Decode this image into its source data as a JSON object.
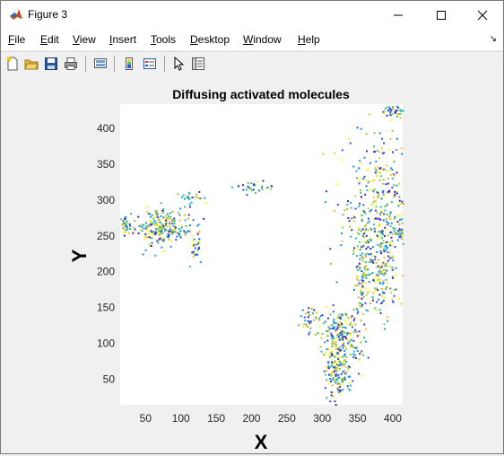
{
  "window": {
    "title": "Figure 3"
  },
  "menu": {
    "items": [
      {
        "pre": "",
        "u": "F",
        "post": "ile"
      },
      {
        "pre": "",
        "u": "E",
        "post": "dit"
      },
      {
        "pre": "",
        "u": "V",
        "post": "iew"
      },
      {
        "pre": "",
        "u": "I",
        "post": "nsert"
      },
      {
        "pre": "",
        "u": "T",
        "post": "ools"
      },
      {
        "pre": "",
        "u": "D",
        "post": "esktop"
      },
      {
        "pre": "",
        "u": "W",
        "post": "indow"
      },
      {
        "pre": "",
        "u": "H",
        "post": "elp"
      }
    ]
  },
  "toolbar": {
    "icons": [
      "new-figure-icon",
      "open-file-icon",
      "save-icon",
      "print-icon",
      "link-plot-icon",
      "colorbar-icon",
      "legend-icon",
      "pointer-icon",
      "property-inspector-icon"
    ]
  },
  "colors": {
    "series": [
      "#3e26a8",
      "#2f4fe8",
      "#1d8ee4",
      "#19b5c8",
      "#4ac26e",
      "#a8bd3a",
      "#f4c02e",
      "#f9fb0e"
    ]
  },
  "chart_data": {
    "type": "scatter",
    "title": "Diffusing activated molecules",
    "xlabel": "X",
    "ylabel": "Y",
    "xlim": [
      14,
      414
    ],
    "ylim": [
      14,
      434
    ],
    "xticks": [
      50,
      100,
      150,
      200,
      250,
      300,
      350,
      400
    ],
    "yticks": [
      50,
      100,
      150,
      200,
      250,
      300,
      350,
      400
    ],
    "grid": false,
    "clusters": [
      {
        "cx": 383,
        "cy": 285,
        "rx": 55,
        "ry": 115,
        "n": 400
      },
      {
        "cx": 402,
        "cy": 425,
        "rx": 18,
        "ry": 10,
        "n": 45
      },
      {
        "cx": 380,
        "cy": 195,
        "rx": 22,
        "ry": 60,
        "n": 120
      },
      {
        "cx": 355,
        "cy": 195,
        "rx": 10,
        "ry": 55,
        "n": 80
      },
      {
        "cx": 325,
        "cy": 105,
        "rx": 30,
        "ry": 45,
        "n": 240
      },
      {
        "cx": 320,
        "cy": 55,
        "rx": 14,
        "ry": 35,
        "n": 110
      },
      {
        "cx": 280,
        "cy": 135,
        "rx": 14,
        "ry": 15,
        "n": 30
      },
      {
        "cx": 70,
        "cy": 263,
        "rx": 42,
        "ry": 25,
        "n": 230
      },
      {
        "cx": 20,
        "cy": 268,
        "rx": 8,
        "ry": 14,
        "n": 30
      },
      {
        "cx": 120,
        "cy": 235,
        "rx": 10,
        "ry": 22,
        "n": 30
      },
      {
        "cx": 115,
        "cy": 305,
        "rx": 20,
        "ry": 8,
        "n": 25
      },
      {
        "cx": 200,
        "cy": 318,
        "rx": 30,
        "ry": 8,
        "n": 35
      },
      {
        "cx": 410,
        "cy": 255,
        "rx": 8,
        "ry": 10,
        "n": 25
      }
    ]
  }
}
